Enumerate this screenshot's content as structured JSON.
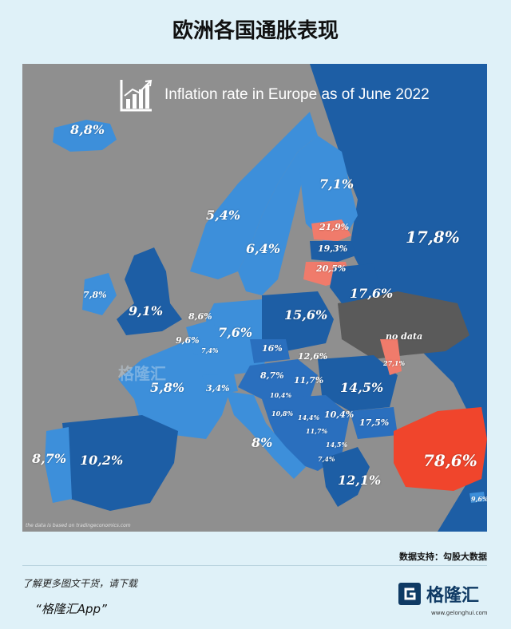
{
  "page_title": "欧洲各国通胀表现",
  "map": {
    "title": "Inflation rate in Europe as of June 2022",
    "footnote": "the data is based on tradingeconomics.com",
    "watermark": "格隆汇",
    "no_data_label": "no data",
    "colors": {
      "background": "#8f8f8f",
      "light": "#3d8fda",
      "medium": "#2a6fbe",
      "dark": "#1d5ea5",
      "high": "#f07b6b",
      "extreme": "#f0452c",
      "no_data": "#5a5a5a"
    },
    "values": [
      {
        "country": "Iceland",
        "value": "8,8%",
        "inflation": 8.8
      },
      {
        "country": "Finland",
        "value": "7,1%",
        "inflation": 7.1
      },
      {
        "country": "Norway",
        "value": "5,4%",
        "inflation": 5.4
      },
      {
        "country": "Sweden",
        "value": "6,4%",
        "inflation": 6.4
      },
      {
        "country": "Estonia",
        "value": "21,9%",
        "inflation": 21.9
      },
      {
        "country": "Latvia",
        "value": "19,3%",
        "inflation": 19.3
      },
      {
        "country": "Lithuania",
        "value": "20,5%",
        "inflation": 20.5
      },
      {
        "country": "Russia",
        "value": "17,8%",
        "inflation": 17.8
      },
      {
        "country": "Belarus",
        "value": "17,6%",
        "inflation": 17.6
      },
      {
        "country": "Ireland",
        "value": "7,8%",
        "inflation": 7.8
      },
      {
        "country": "United Kingdom",
        "value": "9,1%",
        "inflation": 9.1
      },
      {
        "country": "Netherlands",
        "value": "8,6%",
        "inflation": 8.6
      },
      {
        "country": "Denmark/Germany",
        "value": "7,6%",
        "inflation": 7.6
      },
      {
        "country": "Poland",
        "value": "15,6%",
        "inflation": 15.6
      },
      {
        "country": "Belgium",
        "value": "9,6%",
        "inflation": 9.6
      },
      {
        "country": "Luxembourg",
        "value": "7,4%",
        "inflation": 7.4
      },
      {
        "country": "Czechia",
        "value": "16%",
        "inflation": 16
      },
      {
        "country": "Slovakia",
        "value": "12,6%",
        "inflation": 12.6
      },
      {
        "country": "Moldova",
        "value": "27,1%",
        "inflation": 27.1
      },
      {
        "country": "France",
        "value": "5,8%",
        "inflation": 5.8
      },
      {
        "country": "Switzerland",
        "value": "3,4%",
        "inflation": 3.4
      },
      {
        "country": "Austria",
        "value": "8,7%",
        "inflation": 8.7
      },
      {
        "country": "Hungary",
        "value": "11,7%",
        "inflation": 11.7
      },
      {
        "country": "Romania",
        "value": "14,5%",
        "inflation": 14.5
      },
      {
        "country": "Slovenia",
        "value": "10,4%",
        "inflation": 10.4
      },
      {
        "country": "Croatia",
        "value": "10,8%",
        "inflation": 10.8
      },
      {
        "country": "Bosnia",
        "value": "14,4%",
        "inflation": 14.4
      },
      {
        "country": "Serbia",
        "value": "10,4%",
        "inflation": 10.4
      },
      {
        "country": "Montenegro",
        "value": "11,7%",
        "inflation": 11.7
      },
      {
        "country": "Bulgaria",
        "value": "17,5%",
        "inflation": 17.5
      },
      {
        "country": "North Macedonia",
        "value": "14,5%",
        "inflation": 14.5
      },
      {
        "country": "Albania",
        "value": "7,4%",
        "inflation": 7.4
      },
      {
        "country": "Portugal",
        "value": "8,7%",
        "inflation": 8.7
      },
      {
        "country": "Spain",
        "value": "10,2%",
        "inflation": 10.2
      },
      {
        "country": "Italy",
        "value": "8%",
        "inflation": 8
      },
      {
        "country": "Greece",
        "value": "12,1%",
        "inflation": 12.1
      },
      {
        "country": "Turkey",
        "value": "78,6%",
        "inflation": 78.6
      },
      {
        "country": "Cyprus",
        "value": "9,6%",
        "inflation": 9.6
      }
    ]
  },
  "source": "数据支持：勾股大数据",
  "promo": {
    "line1": "了解更多图文干货，请下载",
    "line2": "“格隆汇App”"
  },
  "brand": {
    "name": "格隆汇",
    "url": "www.gelonghui.com"
  }
}
